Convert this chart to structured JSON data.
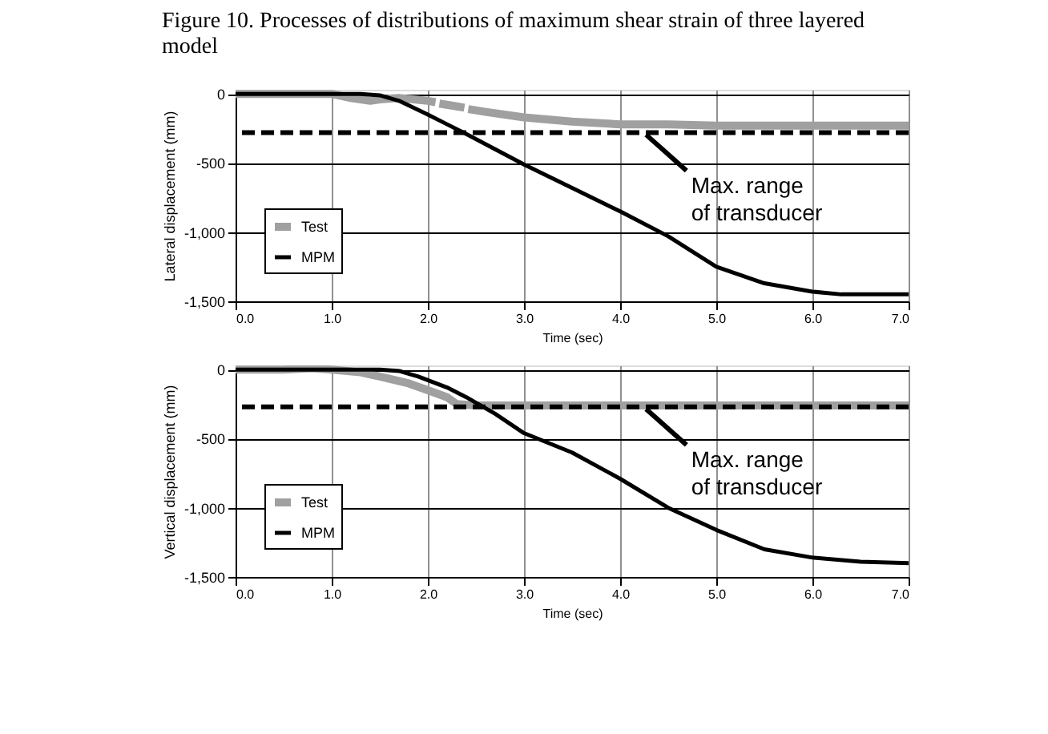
{
  "chart_data": [
    {
      "type": "line",
      "title": "Figure 10. Processes of distributions of maximum shear strain of three layered model",
      "xlabel": "Time (sec)",
      "ylabel": "Lateral displacement (mm)",
      "xlim": [
        0,
        7
      ],
      "xticks": [
        {
          "value": 0,
          "label": "0.0"
        },
        {
          "value": 1,
          "label": "1.0"
        },
        {
          "value": 2,
          "label": "2.0"
        },
        {
          "value": 3,
          "label": "3.0"
        },
        {
          "value": 4,
          "label": "4.0"
        },
        {
          "value": 5,
          "label": "5.0"
        },
        {
          "value": 6,
          "label": "6.0"
        },
        {
          "value": 7,
          "label": "7.0"
        }
      ],
      "ylim": [
        -1500,
        30
      ],
      "yticks": [
        0,
        -500,
        {
          "value": -1000,
          "label": "-1,000"
        },
        {
          "value": -1500,
          "label": "-1,500"
        }
      ],
      "grid": true,
      "legend": "bottom left",
      "ref_lines": [
        {
          "axis": "y",
          "value": -280,
          "label": "Max. range of transducer",
          "color": "#000000",
          "line_style": "dashed"
        }
      ],
      "series": [
        {
          "name": "Test",
          "color": "#a0a0a0",
          "x": [
            0,
            0.5,
            1.0,
            1.2,
            1.4,
            1.5,
            1.7,
            2.0,
            2.08,
            2.1,
            2.12,
            2.3,
            2.38,
            2.4,
            2.42,
            2.6,
            3.0,
            3.5,
            4.0,
            4.5,
            5.0,
            6.0,
            7.0
          ],
          "values": [
            0,
            0,
            0,
            -30,
            -50,
            -40,
            -30,
            -50,
            -60,
            null,
            -70,
            -90,
            -100,
            null,
            -110,
            -130,
            -170,
            -200,
            -220,
            -220,
            -230,
            -230,
            -230
          ]
        },
        {
          "name": "MPM",
          "color": "#000000",
          "x": [
            0,
            0.5,
            1.0,
            1.3,
            1.5,
            1.7,
            2.0,
            2.2,
            2.4,
            2.7,
            3.0,
            3.5,
            4.0,
            4.5,
            5.0,
            5.5,
            6.0,
            6.3,
            6.5,
            7.0
          ],
          "values": [
            0,
            0,
            0,
            0,
            -10,
            -50,
            -150,
            -220,
            -290,
            -400,
            -510,
            -680,
            -850,
            -1030,
            -1250,
            -1370,
            -1430,
            -1450,
            -1450,
            -1450
          ]
        }
      ]
    },
    {
      "type": "line",
      "xlabel": "Time (sec)",
      "ylabel": "Vertical displacement (mm)",
      "xlim": [
        0,
        7
      ],
      "xticks": [
        {
          "value": 0,
          "label": "0.0"
        },
        {
          "value": 1,
          "label": "1.0"
        },
        {
          "value": 2,
          "label": "2.0"
        },
        {
          "value": 3,
          "label": "3.0"
        },
        {
          "value": 4,
          "label": "4.0"
        },
        {
          "value": 5,
          "label": "5.0"
        },
        {
          "value": 6,
          "label": "6.0"
        },
        {
          "value": 7,
          "label": "7.0"
        }
      ],
      "ylim": [
        -1500,
        30
      ],
      "yticks": [
        0,
        -500,
        {
          "value": -1000,
          "label": "-1,000"
        },
        {
          "value": -1500,
          "label": "-1,500"
        }
      ],
      "grid": true,
      "legend": "bottom left",
      "ref_lines": [
        {
          "axis": "y",
          "value": -270,
          "label": "Max. range of transducer",
          "color": "#000000",
          "line_style": "dashed"
        }
      ],
      "series": [
        {
          "name": "Test",
          "color": "#a0a0a0",
          "x": [
            0,
            0.5,
            0.8,
            1.0,
            1.3,
            1.5,
            1.8,
            2.0,
            2.2,
            2.3,
            2.5,
            3.0,
            4.0,
            5.0,
            6.0,
            7.0
          ],
          "values": [
            0,
            0,
            10,
            0,
            -20,
            -50,
            -100,
            -150,
            -200,
            -250,
            -260,
            -260,
            -260,
            -260,
            -260,
            -260
          ]
        },
        {
          "name": "MPM",
          "color": "#000000",
          "x": [
            0,
            0.5,
            1.0,
            1.5,
            1.7,
            1.9,
            2.2,
            2.4,
            2.7,
            3.0,
            3.5,
            4.0,
            4.5,
            5.0,
            5.5,
            6.0,
            6.5,
            7.0
          ],
          "values": [
            0,
            0,
            0,
            0,
            -10,
            -50,
            -130,
            -200,
            -320,
            -460,
            -600,
            -790,
            -1000,
            -1160,
            -1300,
            -1360,
            -1390,
            -1400
          ]
        }
      ]
    }
  ]
}
